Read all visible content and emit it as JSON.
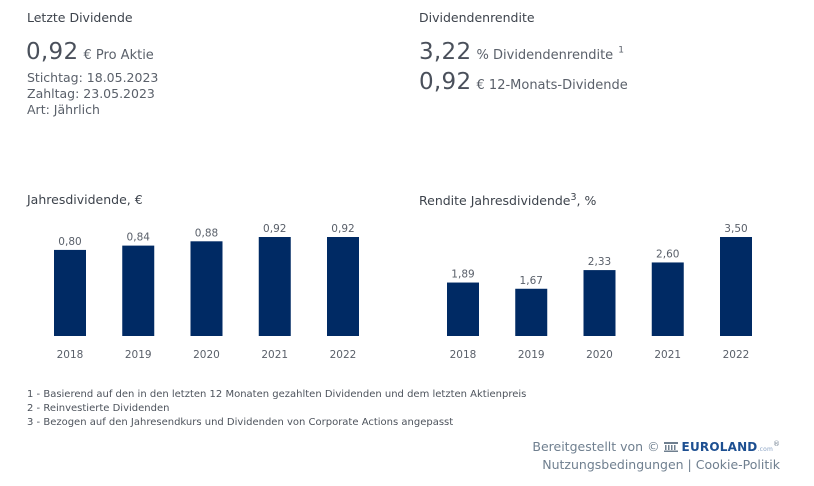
{
  "last_dividend": {
    "title": "Letzte Dividende",
    "value": "0,92",
    "unit": "€ Pro Aktie",
    "record_date": "Stichtag: 18.05.2023",
    "pay_date": "Zahltag: 23.05.2023",
    "type": "Art: Jährlich"
  },
  "dividend_yield": {
    "title": "Dividendenrendite",
    "yield_value": "3,22",
    "yield_unit": "% Dividendenrendite",
    "yield_footnote": "1",
    "ttm_value": "0,92",
    "ttm_unit": "€ 12-Monats-Dividende"
  },
  "chart_data": [
    {
      "type": "bar",
      "title": "Jahresdividende, €",
      "categories": [
        "2018",
        "2019",
        "2020",
        "2021",
        "2022"
      ],
      "values": [
        0.8,
        0.84,
        0.88,
        0.92,
        0.92
      ],
      "labels": [
        "0,80",
        "0,84",
        "0,88",
        "0,92",
        "0,92"
      ],
      "xlabel": "",
      "ylabel": "",
      "ylim": [
        0,
        0.92
      ],
      "grid": false,
      "color": "#002a64"
    },
    {
      "type": "bar",
      "title": "Rendite Jahresdividende",
      "title_footnote": "3",
      "title_suffix": ", %",
      "categories": [
        "2018",
        "2019",
        "2020",
        "2021",
        "2022"
      ],
      "values": [
        1.89,
        1.67,
        2.33,
        2.6,
        3.5
      ],
      "labels": [
        "1,89",
        "1,67",
        "2,33",
        "2,60",
        "3,50"
      ],
      "xlabel": "",
      "ylabel": "",
      "ylim": [
        0,
        3.5
      ],
      "grid": false,
      "color": "#002a64"
    }
  ],
  "footnotes": [
    "1 - Basierend auf den in den letzten 12 Monaten gezahlten Dividenden und dem letzten Aktienpreis",
    "2 - Reinvestierte Dividenden",
    "3 - Bezogen auf den Jahresendkurs und Dividenden von Corporate Actions angepasst"
  ],
  "credit": {
    "provided_by": "Bereitgestellt von ©",
    "brand": "EUROLAND",
    "brand_suffix": ".com",
    "registered": "®",
    "terms_link": "Nutzungsbedingungen",
    "separator": "|",
    "cookie_link": "Cookie-Politik"
  },
  "colors": {
    "bar": "#002a64",
    "text": "#4a4f59",
    "link": "#6f7f8f"
  }
}
